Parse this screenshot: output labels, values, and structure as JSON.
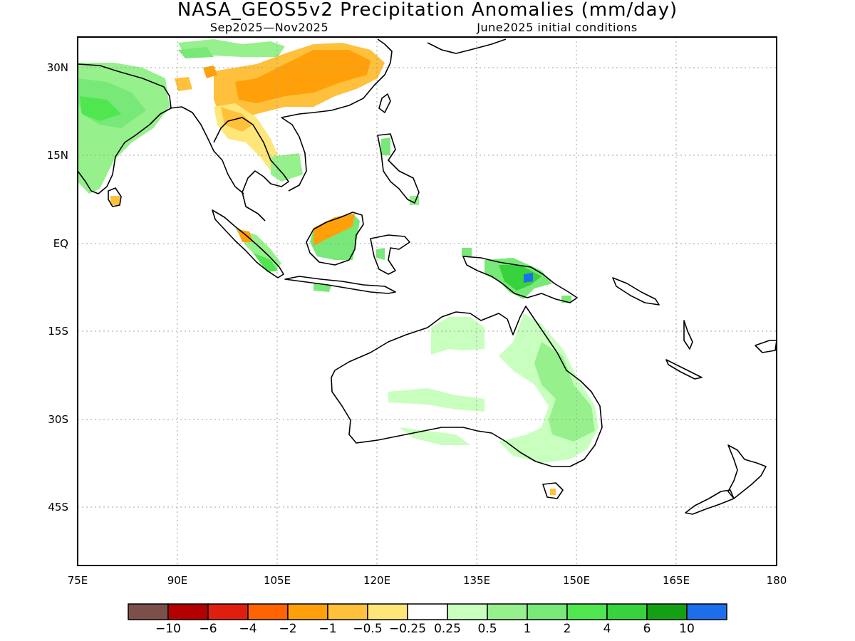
{
  "title": "NASA_GEOS5v2 Precipitation Anomalies (mm/day)",
  "subtitle_left": "Sep2025—Nov2025",
  "subtitle_right": "June2025 initial conditions",
  "lon_labels": [
    "75E",
    "90E",
    "105E",
    "120E",
    "135E",
    "150E",
    "165E",
    "180"
  ],
  "lat_labels": [
    "30N",
    "15N",
    "EQ",
    "15S",
    "30S",
    "45S"
  ],
  "lon_range": [
    75,
    180
  ],
  "lat_range": [
    -55,
    35
  ],
  "lon_ticks": [
    75,
    90,
    105,
    120,
    135,
    150,
    165,
    180
  ],
  "lat_ticks": [
    30,
    15,
    0,
    -15,
    -30,
    -45
  ],
  "colorbar": {
    "colors": [
      "#7a5048",
      "#b40000",
      "#e01e10",
      "#ff6400",
      "#ffa00a",
      "#ffc03c",
      "#ffe678",
      "#ffffff",
      "#c8ffbe",
      "#96f08c",
      "#78e878",
      "#50e650",
      "#37d23c",
      "#14a014",
      "#1e6eeb"
    ],
    "labels": [
      "−10",
      "−6",
      "−4",
      "−2",
      "−1",
      "−0.5",
      "−0.25",
      "0.25",
      "0.5",
      "1",
      "2",
      "4",
      "6",
      "10"
    ]
  }
}
